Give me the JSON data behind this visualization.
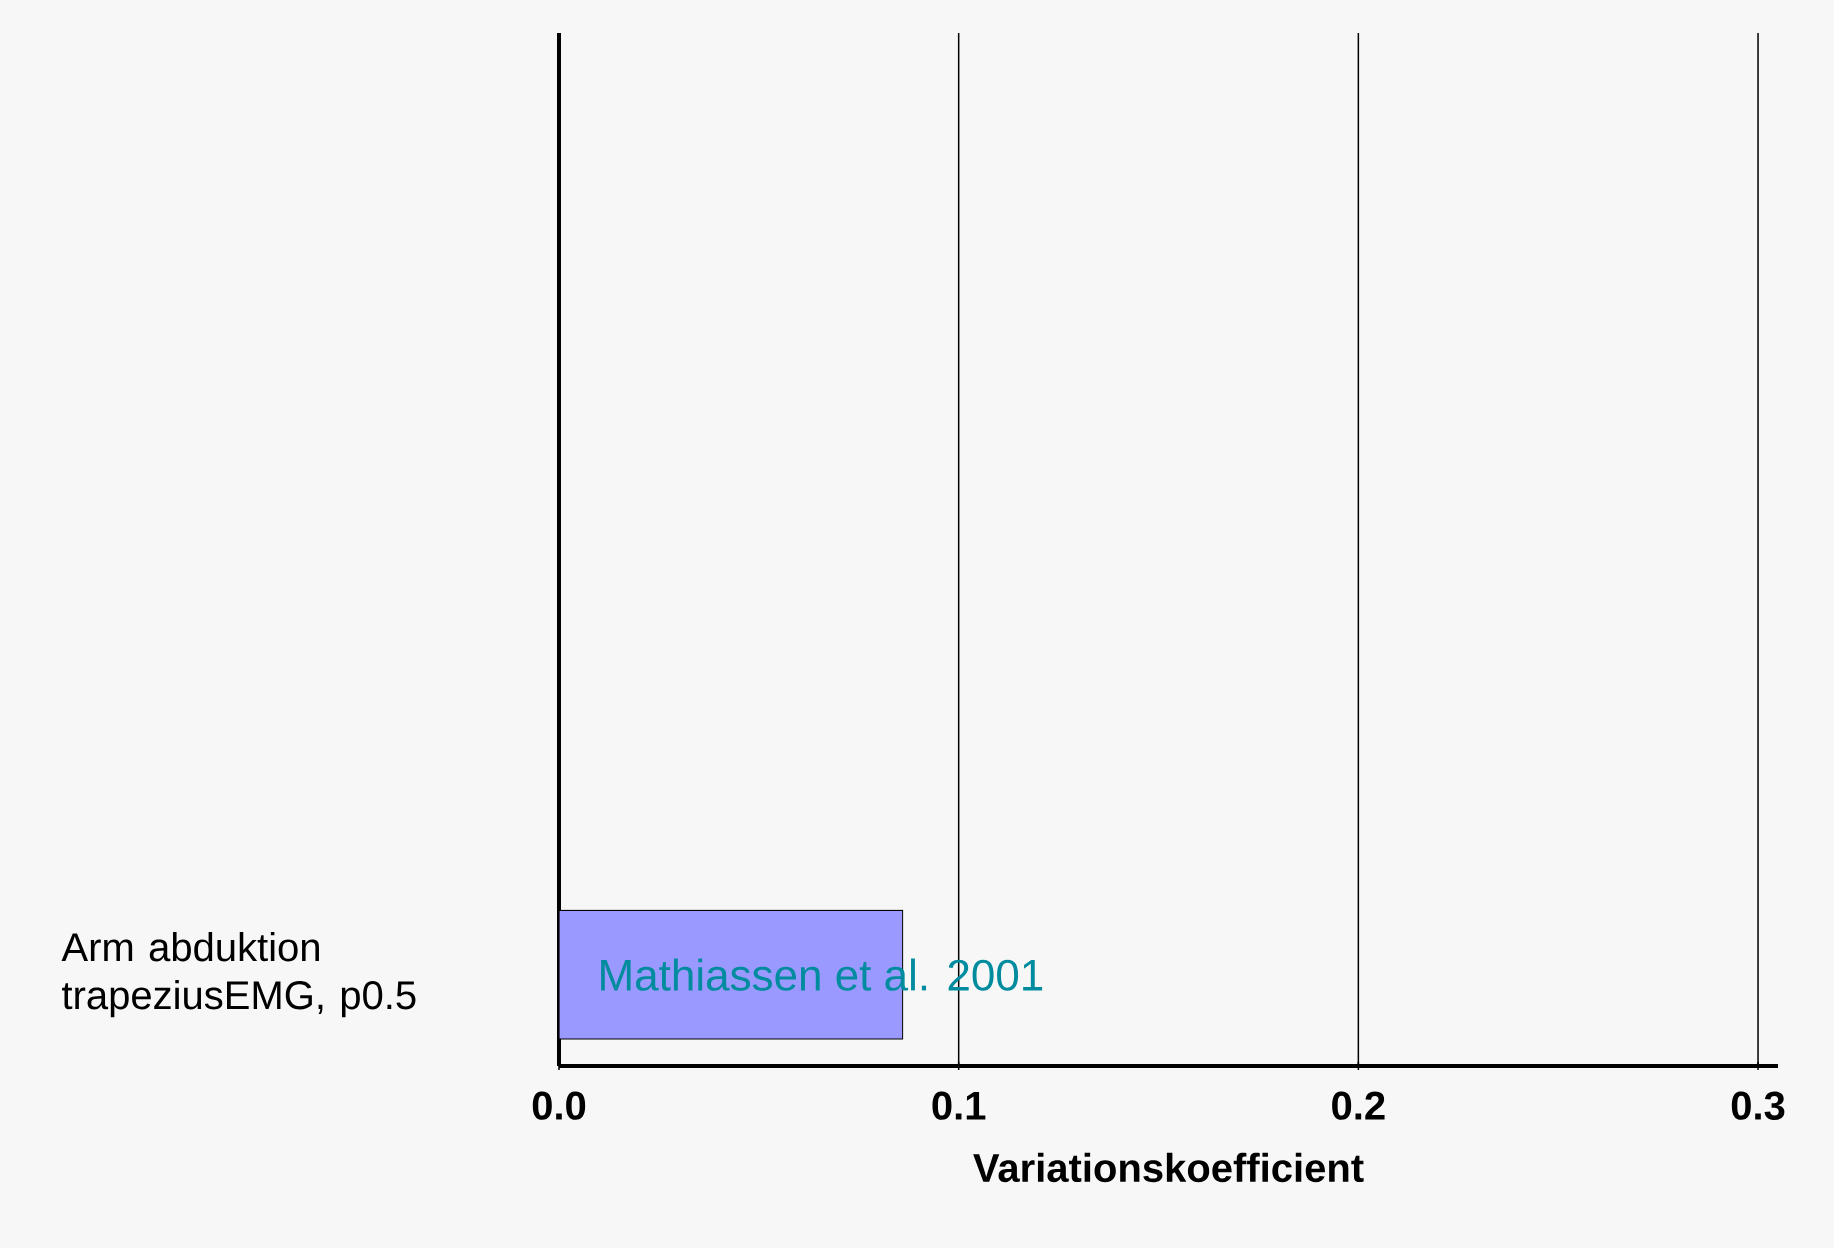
{
  "chart_data": {
    "type": "bar",
    "orientation": "horizontal",
    "xlabel": "Variationskoefficient",
    "categories": [
      "Arm abduktion trapeziusEMG, p0.5"
    ],
    "values": [
      0.086
    ],
    "color": "#9999ff",
    "xlim": [
      0,
      0.305
    ],
    "xticks": [
      {
        "value": 0,
        "label": "0.0"
      },
      {
        "value": 0.1,
        "label": "0.1"
      },
      {
        "value": 0.2,
        "label": "0.2"
      },
      {
        "value": 0.3,
        "label": "0.3"
      }
    ],
    "grid": "x",
    "annotations": [
      "Mathiassen et al. 2001"
    ]
  }
}
